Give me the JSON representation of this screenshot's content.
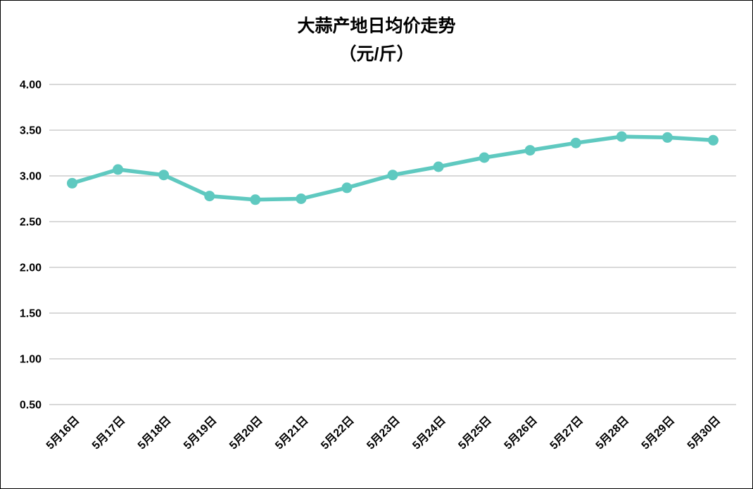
{
  "chart_data": {
    "type": "line",
    "title": "大蒜产地日均价走势",
    "subtitle": "（元/斤）",
    "categories": [
      "5月16日",
      "5月17日",
      "5月18日",
      "5月19日",
      "5月20日",
      "5月21日",
      "5月22日",
      "5月23日",
      "5月24日",
      "5月25日",
      "5月26日",
      "5月27日",
      "5月28日",
      "5月29日",
      "5月30日"
    ],
    "values": [
      2.92,
      3.07,
      3.01,
      2.78,
      2.74,
      2.75,
      2.87,
      3.01,
      3.1,
      3.2,
      3.28,
      3.36,
      3.43,
      3.42,
      3.39
    ],
    "xlabel": "",
    "ylabel": "",
    "ylim": [
      0.5,
      4.0
    ],
    "yticks": [
      0.5,
      1.0,
      1.5,
      2.0,
      2.5,
      3.0,
      3.5,
      4.0
    ],
    "ytick_labels": [
      "0.50",
      "1.00",
      "1.50",
      "2.00",
      "2.50",
      "3.00",
      "3.50",
      "4.00"
    ],
    "grid": true,
    "legend_position": "none",
    "line_color": "#5FC9C0",
    "gridline_color": "#D9D9D9",
    "text_color": "#000000",
    "background_color": "#FFFFFF"
  }
}
